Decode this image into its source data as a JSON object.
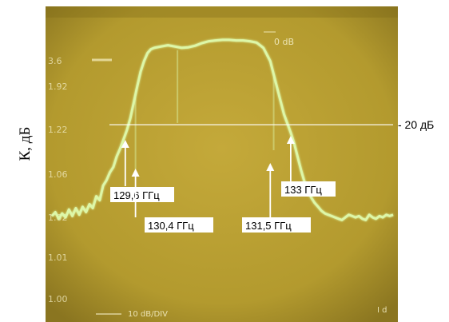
{
  "chart_data": {
    "type": "line",
    "title": "",
    "ylabel": "К, дБ",
    "xlabel": "",
    "screen_top_label": "0 dB",
    "screen_left_labels": [
      "3.6",
      "1.92",
      "1.22",
      "1.06",
      "1.02",
      "1.01",
      "1.00"
    ],
    "screen_bottom_left_label": "10 dB/DIV",
    "screen_bottom_right_label": "I d",
    "series": [
      {
        "values": [
          [
            0.0,
            6.45
          ],
          [
            0.01,
            6.3
          ],
          [
            0.02,
            6.55
          ],
          [
            0.03,
            6.35
          ],
          [
            0.04,
            6.5
          ],
          [
            0.05,
            6.2
          ],
          [
            0.06,
            6.45
          ],
          [
            0.07,
            6.15
          ],
          [
            0.08,
            6.4
          ],
          [
            0.09,
            6.1
          ],
          [
            0.1,
            6.3
          ],
          [
            0.11,
            6.0
          ],
          [
            0.12,
            6.15
          ],
          [
            0.13,
            5.7
          ],
          [
            0.14,
            5.85
          ],
          [
            0.15,
            5.3
          ],
          [
            0.16,
            5.1
          ],
          [
            0.17,
            4.8
          ],
          [
            0.18,
            4.6
          ],
          [
            0.19,
            4.2
          ],
          [
            0.2,
            3.9
          ],
          [
            0.21,
            3.55
          ],
          [
            0.22,
            3.2
          ],
          [
            0.23,
            2.75
          ],
          [
            0.24,
            2.15
          ],
          [
            0.25,
            1.55
          ],
          [
            0.26,
            1.0
          ],
          [
            0.27,
            0.6
          ],
          [
            0.28,
            0.3
          ],
          [
            0.29,
            0.15
          ],
          [
            0.3,
            0.1
          ],
          [
            0.32,
            0.05
          ],
          [
            0.34,
            0.0
          ],
          [
            0.36,
            0.05
          ],
          [
            0.38,
            0.1
          ],
          [
            0.4,
            0.08
          ],
          [
            0.42,
            0.02
          ],
          [
            0.44,
            -0.08
          ],
          [
            0.46,
            -0.15
          ],
          [
            0.48,
            -0.18
          ],
          [
            0.5,
            -0.2
          ],
          [
            0.52,
            -0.2
          ],
          [
            0.54,
            -0.18
          ],
          [
            0.56,
            -0.18
          ],
          [
            0.58,
            -0.15
          ],
          [
            0.6,
            -0.1
          ],
          [
            0.62,
            0.1
          ],
          [
            0.64,
            0.6
          ],
          [
            0.66,
            1.6
          ],
          [
            0.68,
            2.6
          ],
          [
            0.7,
            3.3
          ],
          [
            0.71,
            3.7
          ],
          [
            0.72,
            4.2
          ],
          [
            0.73,
            4.7
          ],
          [
            0.74,
            5.15
          ],
          [
            0.75,
            5.5
          ],
          [
            0.76,
            5.75
          ],
          [
            0.77,
            5.95
          ],
          [
            0.78,
            6.1
          ],
          [
            0.79,
            6.25
          ],
          [
            0.8,
            6.35
          ],
          [
            0.81,
            6.4
          ],
          [
            0.82,
            6.45
          ],
          [
            0.83,
            6.5
          ],
          [
            0.84,
            6.55
          ],
          [
            0.85,
            6.6
          ],
          [
            0.86,
            6.5
          ],
          [
            0.87,
            6.4
          ],
          [
            0.88,
            6.45
          ],
          [
            0.89,
            6.5
          ],
          [
            0.9,
            6.45
          ],
          [
            0.91,
            6.55
          ],
          [
            0.92,
            6.6
          ],
          [
            0.93,
            6.4
          ],
          [
            0.94,
            6.5
          ],
          [
            0.95,
            6.55
          ],
          [
            0.96,
            6.45
          ],
          [
            0.97,
            6.5
          ],
          [
            0.98,
            6.4
          ],
          [
            0.99,
            6.45
          ],
          [
            1.0,
            6.4
          ]
        ]
      }
    ],
    "spikes": [
      0.245,
      0.368,
      0.65
    ],
    "reference_line": {
      "value": 3.0,
      "label": "- 20 дБ"
    },
    "annotations": [
      {
        "label": "129,6 ГГц",
        "x": 0.215
      },
      {
        "label": "130,4 ГГц",
        "x": 0.245
      },
      {
        "label": "131,5 ГГц",
        "x": 0.64
      },
      {
        "label": "133 ГГц",
        "x": 0.7
      }
    ],
    "ylim": [
      9,
      -0.5
    ],
    "xlim": [
      0,
      1
    ],
    "grid": false,
    "colors": {
      "screen": "#b39a2e",
      "screen_dark": "#7d6a16",
      "trace": "#ddf7a8",
      "screen_text": "#f2ecc2",
      "reference_line": "#ffffff"
    }
  }
}
